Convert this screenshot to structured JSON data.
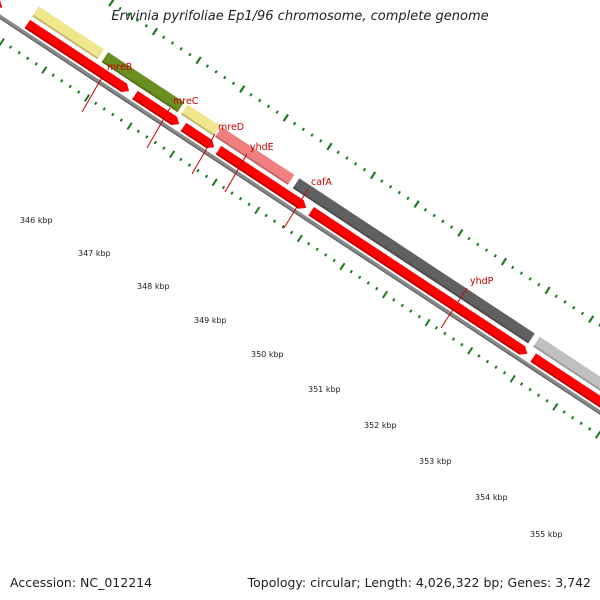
{
  "title": "Erwinia pyrifoliae Ep1/96 chromosome, complete genome",
  "footer": {
    "accession": "Accession: NC_012214",
    "stats": "Topology: circular; Length: 4,026,322 bp; Genes: 3,742"
  },
  "colors": {
    "cds_red": "#ff0000",
    "cds_dark_red": "#b80000",
    "backbone": "#888888",
    "tick_green": "#1e7a1e",
    "label_red": "#cc0000",
    "yellow_feature": "#f0e68c",
    "olive_feature": "#6b8e23",
    "pink_feature": "#f08080",
    "dark_gray_feature": "#606060",
    "light_gray_feature": "#c0c0c0"
  },
  "scale_labels": [
    "346 kbp",
    "347 kbp",
    "348 kbp",
    "349 kbp",
    "350 kbp",
    "351 kbp",
    "352 kbp",
    "353 kbp",
    "354 kbp",
    "355 kbp"
  ],
  "gene_labels": [
    {
      "name": "mreB",
      "color": "#f0e68c"
    },
    {
      "name": "mreC",
      "color": "#6b8e23"
    },
    {
      "name": "mreD",
      "color": "#f0e68c"
    },
    {
      "name": "yhdE",
      "color": "#f0e68c"
    },
    {
      "name": "cafA",
      "color": "#f08080"
    },
    {
      "name": "yhdP",
      "color": "#606060"
    }
  ]
}
